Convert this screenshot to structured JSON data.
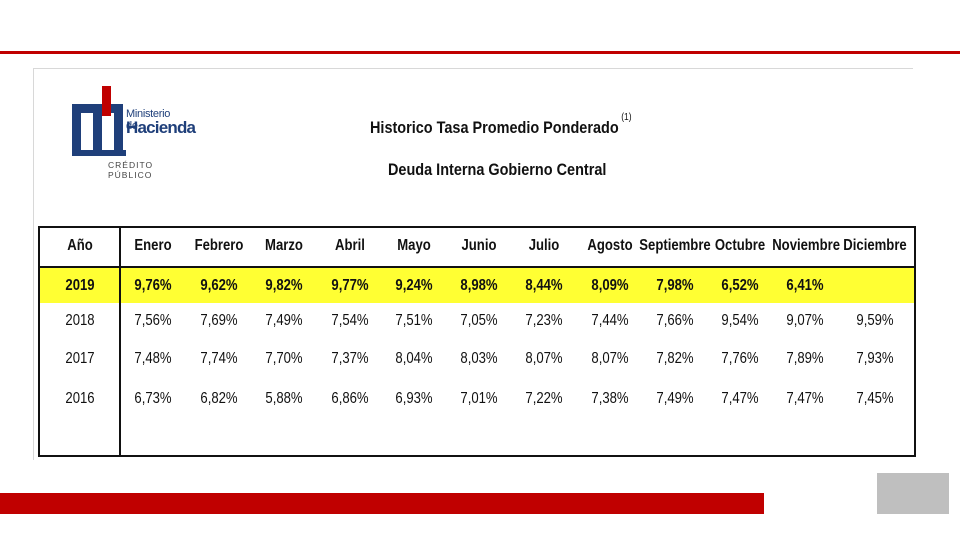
{
  "logo": {
    "line1": "Ministerio de",
    "line2": "Hacienda",
    "line3": "CRÉDITO PÚBLICO"
  },
  "title": "Historico Tasa Promedio Ponderado",
  "title_note": "(1)",
  "subtitle": "Deuda Interna Gobierno Central",
  "table": {
    "headers": [
      "Año",
      "Enero",
      "Febrero",
      "Marzo",
      "Abril",
      "Mayo",
      "Junio",
      "Julio",
      "Agosto",
      "Septiembre",
      "Octubre",
      "Noviembre",
      "Diciembre"
    ],
    "rows": [
      [
        "2019",
        "9,76%",
        "9,62%",
        "9,82%",
        "9,77%",
        "9,24%",
        "8,98%",
        "8,44%",
        "8,09%",
        "7,98%",
        "6,52%",
        "6,41%",
        ""
      ],
      [
        "2018",
        "7,56%",
        "7,69%",
        "7,49%",
        "7,54%",
        "7,51%",
        "7,05%",
        "7,23%",
        "7,44%",
        "7,66%",
        "9,54%",
        "9,07%",
        "9,59%"
      ],
      [
        "2017",
        "7,48%",
        "7,74%",
        "7,70%",
        "7,37%",
        "8,04%",
        "8,03%",
        "8,07%",
        "8,07%",
        "7,82%",
        "7,76%",
        "7,89%",
        "7,93%"
      ],
      [
        "2016",
        "6,73%",
        "6,82%",
        "5,88%",
        "6,86%",
        "6,93%",
        "7,01%",
        "7,22%",
        "7,38%",
        "7,49%",
        "7,47%",
        "7,47%",
        "7,45%"
      ]
    ]
  },
  "colors": {
    "accent_red": "#c00000",
    "highlight_yellow": "#ffff33",
    "gray_box": "#bfbfbf"
  }
}
